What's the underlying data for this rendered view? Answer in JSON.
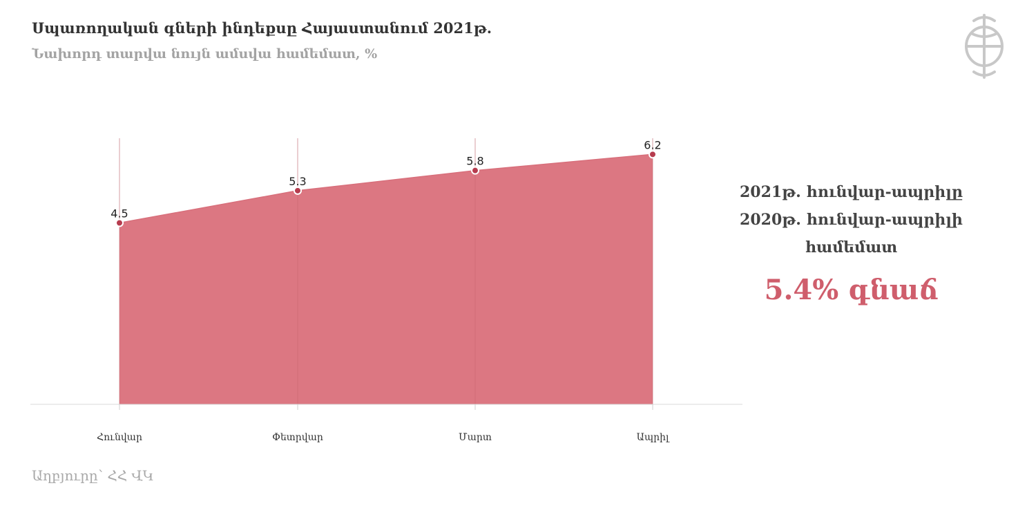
{
  "header": {
    "title": "Սպառողական գների ինդեքսը Հայաստանում  2021թ.",
    "subtitle": "Նախորդ տարվա նույն ամսվա համեմատ, %"
  },
  "logo": {
    "icon": "emblem-icon",
    "color": "#c8c8c8"
  },
  "chart_data": {
    "type": "area",
    "title": "",
    "xlabel": "",
    "ylabel": "",
    "categories": [
      "Հունվար",
      "Փետրվար",
      "Մարտ",
      "Ապրիլ"
    ],
    "values": [
      4.5,
      5.3,
      5.8,
      6.2
    ],
    "value_labels": [
      "4.5",
      "5.3",
      "5.8",
      "6.2"
    ],
    "ylim": [
      0,
      6.6
    ],
    "grid": "vertical",
    "legend": "none",
    "fill_color": "#dc7782",
    "point_color": "#b63c4e"
  },
  "side_note": {
    "line1": "2021թ. հունվար-ապրիլը",
    "line2": "2020թ. հունվար-ապրիլի",
    "line3": "համեմատ",
    "highlight": "5.4% գնաճ",
    "highlight_color": "#cf5e6c"
  },
  "source": "Աղբյուրը՝ ՀՀ ՎԿ"
}
